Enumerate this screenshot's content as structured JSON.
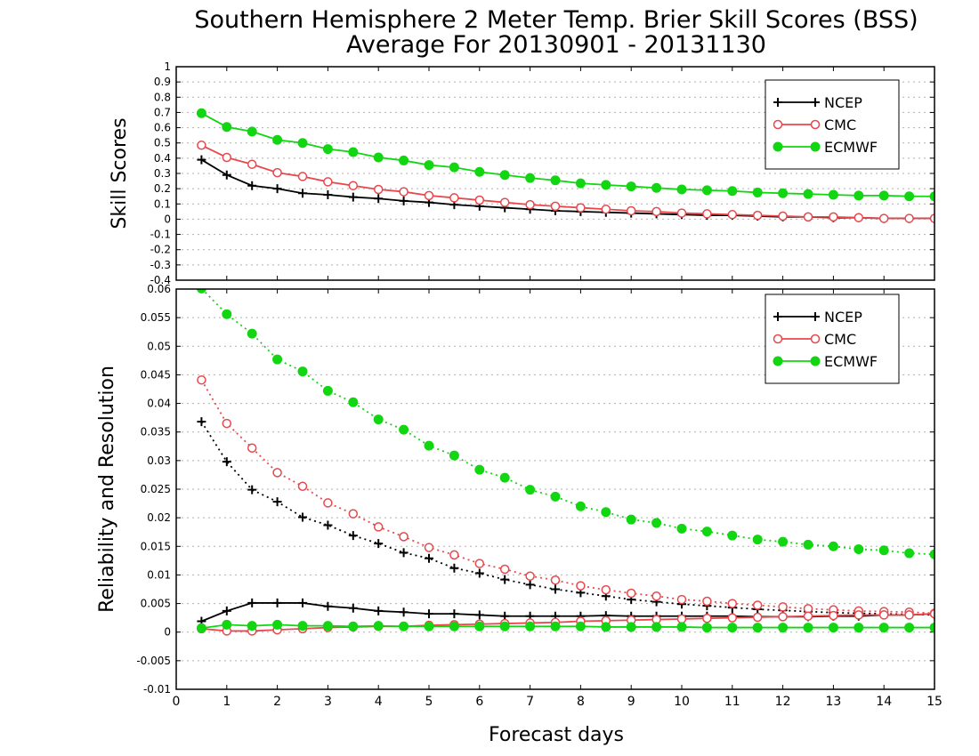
{
  "chart_data": {
    "title_line1": "Southern Hemisphere 2 Meter Temp. Brier Skill Scores (BSS)",
    "title_line2": "Average For 20130901 - 20131130",
    "xlabel": "Forecast days",
    "x_ticks": [
      0,
      1,
      2,
      3,
      4,
      5,
      6,
      7,
      8,
      9,
      10,
      11,
      12,
      13,
      14,
      15
    ],
    "x_tick_labels": [
      "0",
      "1",
      "2",
      "3",
      "4",
      "5",
      "6",
      "7",
      "8",
      "9",
      "10",
      "11",
      "12",
      "13",
      "14",
      "15"
    ],
    "xlim": [
      0,
      15
    ],
    "x": [
      0.5,
      1,
      1.5,
      2,
      2.5,
      3,
      3.5,
      4,
      4.5,
      5,
      5.5,
      6,
      6.5,
      7,
      7.5,
      8,
      8.5,
      9,
      9.5,
      10,
      10.5,
      11,
      11.5,
      12,
      12.5,
      13,
      13.5,
      14,
      14.5,
      15
    ],
    "colors": {
      "NCEP": "#000000",
      "CMC": "#e8474c",
      "ECMWF": "#11d611"
    },
    "panels": [
      {
        "type": "line",
        "ylabel": "Skill Scores",
        "ylim": [
          -0.4,
          1
        ],
        "y_ticks": [
          -0.4,
          -0.3,
          -0.2,
          -0.1,
          0,
          0.1,
          0.2,
          0.3,
          0.4,
          0.5,
          0.6,
          0.7,
          0.8,
          0.9,
          1
        ],
        "y_tick_labels": [
          "-0.4",
          "-0.3",
          "-0.2",
          "-0.1",
          "0",
          "0.1",
          "0.2",
          "0.3",
          "0.4",
          "0.5",
          "0.6",
          "0.7",
          "0.8",
          "0.9",
          "1"
        ],
        "grid": true,
        "legend_position": "top-right",
        "legend": [
          "NCEP",
          "CMC",
          "ECMWF"
        ],
        "series": [
          {
            "name": "NCEP",
            "marker": "plus",
            "style": "solid",
            "values": [
              0.39,
              0.29,
              0.22,
              0.2,
              0.17,
              0.16,
              0.145,
              0.135,
              0.12,
              0.11,
              0.095,
              0.085,
              0.075,
              0.065,
              0.055,
              0.05,
              0.045,
              0.04,
              0.035,
              0.03,
              0.025,
              0.025,
              0.02,
              0.015,
              0.015,
              0.01,
              0.01,
              0.005,
              0.005,
              0.005
            ]
          },
          {
            "name": "CMC",
            "marker": "open-circle",
            "style": "solid",
            "values": [
              0.485,
              0.405,
              0.36,
              0.305,
              0.28,
              0.245,
              0.22,
              0.195,
              0.18,
              0.155,
              0.14,
              0.125,
              0.11,
              0.095,
              0.085,
              0.075,
              0.065,
              0.055,
              0.05,
              0.04,
              0.035,
              0.03,
              0.025,
              0.02,
              0.015,
              0.015,
              0.01,
              0.005,
              0.005,
              0.005
            ]
          },
          {
            "name": "ECMWF",
            "marker": "filled-circle",
            "style": "solid",
            "values": [
              0.695,
              0.605,
              0.575,
              0.52,
              0.5,
              0.46,
              0.44,
              0.405,
              0.385,
              0.355,
              0.34,
              0.31,
              0.29,
              0.27,
              0.255,
              0.235,
              0.225,
              0.215,
              0.205,
              0.195,
              0.19,
              0.185,
              0.175,
              0.17,
              0.165,
              0.16,
              0.155,
              0.155,
              0.15,
              0.15
            ]
          }
        ]
      },
      {
        "type": "line",
        "ylabel": "Reliability and Resolution",
        "ylim": [
          -0.01,
          0.06
        ],
        "y_ticks": [
          -0.01,
          -0.005,
          0,
          0.005,
          0.01,
          0.015,
          0.02,
          0.025,
          0.03,
          0.035,
          0.04,
          0.045,
          0.05,
          0.055,
          0.06
        ],
        "y_tick_labels": [
          "-0.01",
          "-0.005",
          "0",
          "0.005",
          "0.01",
          "0.015",
          "0.02",
          "0.025",
          "0.03",
          "0.035",
          "0.04",
          "0.045",
          "0.05",
          "0.055",
          "0.06"
        ],
        "grid": true,
        "legend_position": "top-right",
        "legend": [
          "NCEP",
          "CMC",
          "ECMWF"
        ],
        "series": [
          {
            "name": "NCEP",
            "marker": "plus",
            "style": "dotted",
            "values": [
              0.0368,
              0.0298,
              0.0249,
              0.0228,
              0.0201,
              0.0187,
              0.0169,
              0.0155,
              0.0139,
              0.0129,
              0.0112,
              0.0103,
              0.0092,
              0.0083,
              0.0075,
              0.0069,
              0.0063,
              0.0057,
              0.0053,
              0.0049,
              0.0046,
              0.0043,
              0.004,
              0.0038,
              0.0036,
              0.0034,
              0.0033,
              0.0032,
              0.0031,
              0.003
            ]
          },
          {
            "name": "CMC",
            "marker": "open-circle",
            "style": "dotted",
            "values": [
              0.0441,
              0.0365,
              0.0322,
              0.0279,
              0.0255,
              0.0226,
              0.0207,
              0.0184,
              0.0167,
              0.0148,
              0.0135,
              0.012,
              0.011,
              0.0098,
              0.0091,
              0.0081,
              0.0074,
              0.0068,
              0.0063,
              0.0057,
              0.0054,
              0.005,
              0.0047,
              0.0044,
              0.0041,
              0.0039,
              0.0037,
              0.0036,
              0.0035,
              0.0033
            ]
          },
          {
            "name": "ECMWF",
            "marker": "filled-circle",
            "style": "dotted",
            "values": [
              0.0601,
              0.0556,
              0.0522,
              0.0477,
              0.0456,
              0.0422,
              0.0402,
              0.0372,
              0.0354,
              0.0326,
              0.0309,
              0.0284,
              0.027,
              0.0249,
              0.0237,
              0.022,
              0.021,
              0.0197,
              0.0191,
              0.0181,
              0.0176,
              0.0169,
              0.0162,
              0.0158,
              0.0153,
              0.015,
              0.0145,
              0.0143,
              0.0138,
              0.0136
            ]
          },
          {
            "name": "NCEP",
            "marker": "plus",
            "style": "solid",
            "values": [
              0.0019,
              0.0037,
              0.0051,
              0.0051,
              0.0051,
              0.0045,
              0.0042,
              0.0037,
              0.0035,
              0.0032,
              0.0032,
              0.003,
              0.0028,
              0.0028,
              0.0028,
              0.0028,
              0.0029,
              0.0028,
              0.0028,
              0.0028,
              0.0028,
              0.0028,
              0.0027,
              0.0027,
              0.0027,
              0.0028,
              0.0028,
              0.003,
              0.003,
              0.0032
            ]
          },
          {
            "name": "CMC",
            "marker": "open-circle",
            "style": "solid",
            "values": [
              0.0006,
              0.0002,
              0.0002,
              0.0004,
              0.0006,
              0.0008,
              0.0009,
              0.001,
              0.001,
              0.0012,
              0.0013,
              0.0014,
              0.0015,
              0.0016,
              0.0017,
              0.0019,
              0.002,
              0.0021,
              0.0022,
              0.0023,
              0.0024,
              0.0025,
              0.0026,
              0.0027,
              0.0028,
              0.0029,
              0.003,
              0.003,
              0.003,
              0.0032
            ]
          },
          {
            "name": "ECMWF",
            "marker": "filled-circle",
            "style": "solid",
            "values": [
              0.0007,
              0.0013,
              0.0011,
              0.0013,
              0.0011,
              0.0011,
              0.001,
              0.0011,
              0.001,
              0.001,
              0.001,
              0.001,
              0.001,
              0.001,
              0.001,
              0.001,
              0.0009,
              0.0009,
              0.0009,
              0.0009,
              0.0008,
              0.0008,
              0.0008,
              0.0008,
              0.0008,
              0.0008,
              0.0008,
              0.0008,
              0.0008,
              0.0008
            ]
          }
        ]
      }
    ]
  }
}
